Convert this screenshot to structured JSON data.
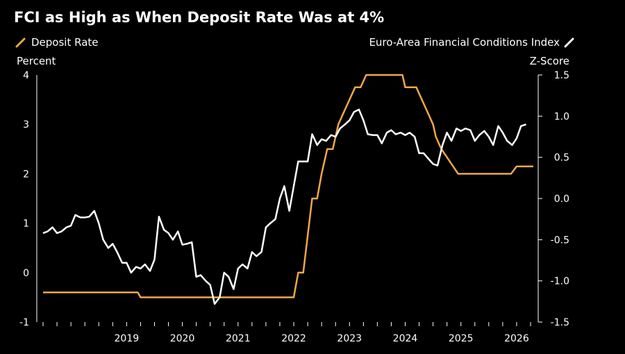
{
  "chart_data": {
    "type": "line",
    "title": "FCI as High as When Deposit Rate Was at 4%",
    "legend_placement": "top",
    "left_axis": {
      "label": "Percent",
      "ylim": [
        -1,
        4
      ],
      "ticks": [
        "4",
        "3",
        "2",
        "1",
        "0",
        "-1"
      ],
      "tick_values": [
        4,
        3,
        2,
        1,
        0,
        -1
      ]
    },
    "right_axis": {
      "label": "Z-Score",
      "ylim": [
        -1.5,
        1.5
      ],
      "ticks": [
        "1.5",
        "1.0",
        "0.5",
        "0.0",
        "-0.5",
        "-1.0",
        "-1.5"
      ],
      "tick_values": [
        1.5,
        1.0,
        0.5,
        0.0,
        -0.5,
        -1.0,
        -1.5
      ]
    },
    "x_axis": {
      "year_labels": [
        "2019",
        "2020",
        "2021",
        "2022",
        "2023",
        "2024",
        "2025",
        "2026"
      ],
      "year_values": [
        2019,
        2020,
        2021,
        2022,
        2023,
        2024,
        2025,
        2026
      ],
      "xlim": [
        2018.0,
        2026.8
      ]
    },
    "grid": false,
    "series": [
      {
        "name": "Deposit Rate",
        "axis": "left",
        "color": "#f0a848",
        "points": [
          [
            2018.0,
            -0.4
          ],
          [
            2019.7,
            -0.4
          ],
          [
            2019.75,
            -0.5
          ],
          [
            2022.5,
            -0.5
          ],
          [
            2022.58,
            0.0
          ],
          [
            2022.67,
            0.0
          ],
          [
            2022.75,
            0.75
          ],
          [
            2022.83,
            1.5
          ],
          [
            2022.92,
            1.5
          ],
          [
            2023.0,
            2.0
          ],
          [
            2023.1,
            2.5
          ],
          [
            2023.2,
            2.5
          ],
          [
            2023.3,
            3.0
          ],
          [
            2023.4,
            3.25
          ],
          [
            2023.5,
            3.5
          ],
          [
            2023.6,
            3.75
          ],
          [
            2023.7,
            3.75
          ],
          [
            2023.8,
            4.0
          ],
          [
            2024.45,
            4.0
          ],
          [
            2024.5,
            3.75
          ],
          [
            2024.7,
            3.75
          ],
          [
            2024.8,
            3.5
          ],
          [
            2024.9,
            3.25
          ],
          [
            2025.0,
            3.0
          ],
          [
            2025.05,
            2.75
          ],
          [
            2025.15,
            2.5
          ],
          [
            2025.3,
            2.25
          ],
          [
            2025.45,
            2.0
          ],
          [
            2025.5,
            2.0
          ],
          [
            2026.4,
            2.0
          ],
          [
            2026.5,
            2.15
          ],
          [
            2026.8,
            2.15
          ]
        ]
      },
      {
        "name": "Euro-Area Financial Conditions Index",
        "axis": "right",
        "color": "#ffffff",
        "points": [
          [
            2018.0,
            -0.42
          ],
          [
            2018.08,
            -0.4
          ],
          [
            2018.17,
            -0.35
          ],
          [
            2018.25,
            -0.42
          ],
          [
            2018.33,
            -0.4
          ],
          [
            2018.42,
            -0.35
          ],
          [
            2018.5,
            -0.33
          ],
          [
            2018.58,
            -0.2
          ],
          [
            2018.67,
            -0.23
          ],
          [
            2018.75,
            -0.23
          ],
          [
            2018.83,
            -0.22
          ],
          [
            2018.92,
            -0.15
          ],
          [
            2019.0,
            -0.3
          ],
          [
            2019.08,
            -0.5
          ],
          [
            2019.17,
            -0.6
          ],
          [
            2019.25,
            -0.55
          ],
          [
            2019.33,
            -0.65
          ],
          [
            2019.42,
            -0.78
          ],
          [
            2019.5,
            -0.78
          ],
          [
            2019.58,
            -0.9
          ],
          [
            2019.67,
            -0.83
          ],
          [
            2019.75,
            -0.85
          ],
          [
            2019.83,
            -0.8
          ],
          [
            2019.92,
            -0.88
          ],
          [
            2020.0,
            -0.74
          ],
          [
            2020.08,
            -0.22
          ],
          [
            2020.17,
            -0.38
          ],
          [
            2020.25,
            -0.42
          ],
          [
            2020.33,
            -0.5
          ],
          [
            2020.42,
            -0.4
          ],
          [
            2020.5,
            -0.56
          ],
          [
            2020.58,
            -0.55
          ],
          [
            2020.67,
            -0.53
          ],
          [
            2020.75,
            -0.95
          ],
          [
            2020.83,
            -0.93
          ],
          [
            2020.92,
            -1.0
          ],
          [
            2021.0,
            -1.05
          ],
          [
            2021.08,
            -1.28
          ],
          [
            2021.17,
            -1.2
          ],
          [
            2021.25,
            -0.9
          ],
          [
            2021.33,
            -0.95
          ],
          [
            2021.42,
            -1.1
          ],
          [
            2021.5,
            -0.85
          ],
          [
            2021.58,
            -0.8
          ],
          [
            2021.67,
            -0.85
          ],
          [
            2021.75,
            -0.65
          ],
          [
            2021.83,
            -0.7
          ],
          [
            2021.92,
            -0.65
          ],
          [
            2022.0,
            -0.35
          ],
          [
            2022.08,
            -0.3
          ],
          [
            2022.17,
            -0.25
          ],
          [
            2022.25,
            0.0
          ],
          [
            2022.33,
            0.15
          ],
          [
            2022.42,
            -0.15
          ],
          [
            2022.5,
            0.15
          ],
          [
            2022.58,
            0.45
          ],
          [
            2022.67,
            0.45
          ],
          [
            2022.75,
            0.45
          ],
          [
            2022.83,
            0.78
          ],
          [
            2022.92,
            0.65
          ],
          [
            2023.0,
            0.72
          ],
          [
            2023.08,
            0.7
          ],
          [
            2023.17,
            0.77
          ],
          [
            2023.25,
            0.75
          ],
          [
            2023.33,
            0.85
          ],
          [
            2023.42,
            0.9
          ],
          [
            2023.5,
            0.95
          ],
          [
            2023.58,
            1.05
          ],
          [
            2023.67,
            1.08
          ],
          [
            2023.75,
            0.95
          ],
          [
            2023.83,
            0.78
          ],
          [
            2023.92,
            0.77
          ],
          [
            2024.0,
            0.77
          ],
          [
            2024.08,
            0.67
          ],
          [
            2024.17,
            0.8
          ],
          [
            2024.25,
            0.83
          ],
          [
            2024.33,
            0.78
          ],
          [
            2024.42,
            0.8
          ],
          [
            2024.5,
            0.77
          ],
          [
            2024.58,
            0.8
          ],
          [
            2024.67,
            0.75
          ],
          [
            2024.75,
            0.55
          ],
          [
            2024.83,
            0.55
          ],
          [
            2024.92,
            0.48
          ],
          [
            2025.0,
            0.42
          ],
          [
            2025.08,
            0.4
          ],
          [
            2025.17,
            0.65
          ],
          [
            2025.25,
            0.8
          ],
          [
            2025.33,
            0.7
          ],
          [
            2025.42,
            0.85
          ],
          [
            2025.5,
            0.82
          ],
          [
            2025.58,
            0.85
          ],
          [
            2025.67,
            0.83
          ],
          [
            2025.75,
            0.7
          ],
          [
            2025.83,
            0.77
          ],
          [
            2025.92,
            0.82
          ],
          [
            2026.0,
            0.75
          ],
          [
            2026.08,
            0.65
          ],
          [
            2026.17,
            0.88
          ],
          [
            2026.25,
            0.8
          ],
          [
            2026.33,
            0.7
          ],
          [
            2026.42,
            0.65
          ],
          [
            2026.5,
            0.73
          ],
          [
            2026.58,
            0.88
          ],
          [
            2026.67,
            0.9
          ]
        ]
      }
    ]
  }
}
